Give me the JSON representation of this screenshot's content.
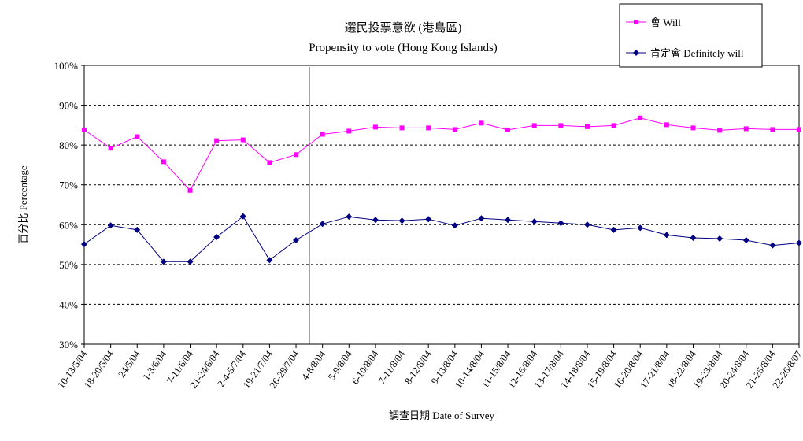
{
  "chart_data": {
    "type": "line",
    "title": "選民投票意欲 (港島區)",
    "subtitle": "Propensity to vote (Hong Kong Islands)",
    "xlabel": "調查日期 Date of Survey",
    "ylabel": "百分比 Percentage",
    "ylim": [
      30,
      100
    ],
    "y_ticks": [
      "30%",
      "40%",
      "50%",
      "60%",
      "70%",
      "80%",
      "90%",
      "100%"
    ],
    "grid": "horizontal dashed",
    "legend_position": "top-right",
    "categories": [
      "10-13/5/04",
      "18-20/5/04",
      "24/5/04",
      "1-3/6/04",
      "7-11/6/04",
      "21-24/6/04",
      "2-4-5/7/04",
      "19-21/7/04",
      "26-29/7/04",
      "4-8/8/04",
      "5-9/8/04",
      "6-10/8/04",
      "7-11/8/04",
      "8-12/8/04",
      "9-13/8/04",
      "10-14/8/04",
      "11-15/8/04",
      "12-16/8/04",
      "13-17/8/04",
      "14-18/8/04",
      "15-19/8/04",
      "16-20/8/04",
      "17-21/8/04",
      "18-22/8/04",
      "19-23/8/04",
      "20-24/8/04",
      "21-25/8/04",
      "22-26/8/07"
    ],
    "vertical_marker_after_category": "26-29/7/04",
    "series": [
      {
        "name": "會 Will",
        "color": "#ff00ff",
        "marker": "square",
        "values": [
          83.8,
          79.2,
          82.1,
          75.8,
          68.6,
          81.1,
          81.3,
          75.6,
          77.6,
          82.7,
          83.5,
          84.5,
          84.3,
          84.3,
          83.9,
          85.5,
          83.8,
          84.9,
          84.9,
          84.6,
          84.9,
          86.8,
          85.1,
          84.3,
          83.7,
          84.1,
          83.9,
          83.9
        ]
      },
      {
        "name": "肯定會 Definitely will",
        "color": "#000080",
        "marker": "diamond",
        "values": [
          55.1,
          59.8,
          58.7,
          50.7,
          50.7,
          56.9,
          62.1,
          51.1,
          56.1,
          60.2,
          62.0,
          61.2,
          61.0,
          61.4,
          59.8,
          61.6,
          61.2,
          60.8,
          60.4,
          60.0,
          58.7,
          59.2,
          57.4,
          56.7,
          56.5,
          56.1,
          54.8,
          55.4
        ]
      }
    ]
  }
}
